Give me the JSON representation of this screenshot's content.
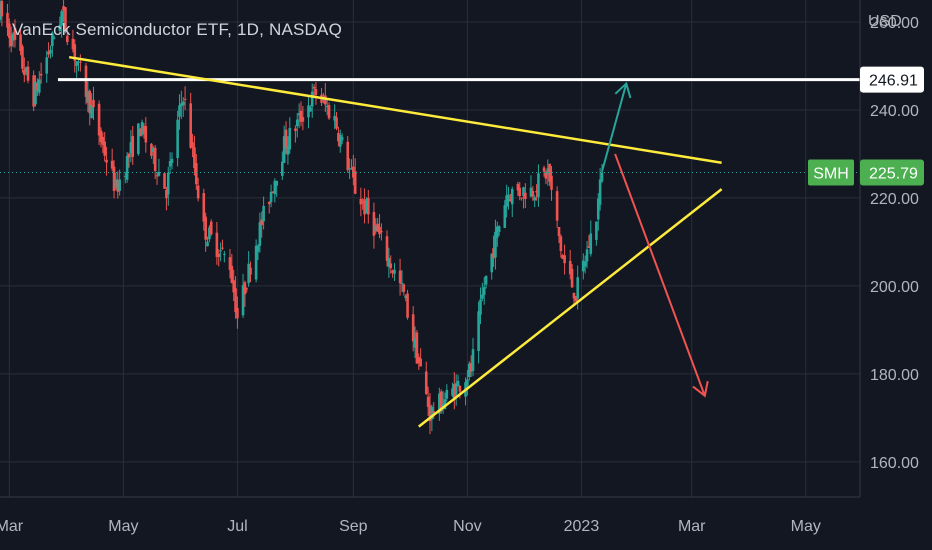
{
  "header": {
    "title": "VanEck Semiconductor ETF, 1D, NASDAQ",
    "currency": "USD"
  },
  "chart_data": {
    "type": "candlestick",
    "title": "VanEck Semiconductor ETF, 1D, NASDAQ",
    "ylabel": "USD",
    "ylim": [
      152,
      265
    ],
    "xlim": [
      "2022-02-24",
      "2023-05-30"
    ],
    "y_ticks": [
      "160.00",
      "180.00",
      "200.00",
      "220.00",
      "240.00",
      "260.00"
    ],
    "x_ticks": [
      {
        "date": "2022-03-01",
        "label": "Mar"
      },
      {
        "date": "2022-05-01",
        "label": "May"
      },
      {
        "date": "2022-07-01",
        "label": "Jul"
      },
      {
        "date": "2022-09-01",
        "label": "Sep"
      },
      {
        "date": "2022-11-01",
        "label": "Nov"
      },
      {
        "date": "2023-01-01",
        "label": "2023"
      },
      {
        "date": "2023-03-01",
        "label": "Mar"
      },
      {
        "date": "2023-05-01",
        "label": "May"
      }
    ],
    "price_path": [
      [
        "2022-02-24",
        262
      ],
      [
        "2022-03-04",
        255
      ],
      [
        "2022-03-14",
        243
      ],
      [
        "2022-03-29",
        262
      ],
      [
        "2022-04-12",
        243
      ],
      [
        "2022-04-27",
        222
      ],
      [
        "2022-05-10",
        236
      ],
      [
        "2022-05-24",
        222
      ],
      [
        "2022-06-02",
        244
      ],
      [
        "2022-06-13",
        213
      ],
      [
        "2022-06-27",
        205
      ],
      [
        "2022-07-01",
        193
      ],
      [
        "2022-07-11",
        210
      ],
      [
        "2022-07-26",
        232
      ],
      [
        "2022-08-12",
        244
      ],
      [
        "2022-08-22",
        238
      ],
      [
        "2022-09-02",
        222
      ],
      [
        "2022-09-14",
        212
      ],
      [
        "2022-09-28",
        198
      ],
      [
        "2022-10-12",
        171
      ],
      [
        "2022-10-24",
        176
      ],
      [
        "2022-11-03",
        181
      ],
      [
        "2022-11-10",
        200
      ],
      [
        "2022-11-22",
        221
      ],
      [
        "2022-12-06",
        222
      ],
      [
        "2022-12-14",
        226
      ],
      [
        "2022-12-22",
        206
      ],
      [
        "2022-12-29",
        198
      ],
      [
        "2023-01-09",
        216
      ],
      [
        "2023-01-12",
        225.79
      ]
    ],
    "levels": [
      {
        "name": "resistance",
        "value": 246.91,
        "label": "246.91",
        "color": "#ffffff"
      }
    ],
    "last_price": {
      "symbol": "SMH",
      "value": 225.79,
      "label": "225.79",
      "color": "#4caf50"
    },
    "trendlines": [
      {
        "role": "upper",
        "color": "#ffeb3b",
        "from": [
          "2022-04-02",
          252
        ],
        "to": [
          "2023-03-17",
          228
        ]
      },
      {
        "role": "lower",
        "color": "#ffeb3b",
        "from": [
          "2022-10-06",
          168
        ],
        "to": [
          "2023-03-17",
          222
        ]
      }
    ],
    "arrows": [
      {
        "direction": "up",
        "color": "#26a69a",
        "from": [
          "2023-01-12",
          226
        ],
        "to": [
          "2023-01-25",
          246
        ]
      },
      {
        "direction": "down",
        "color": "#f05350",
        "from": [
          "2023-01-19",
          230
        ],
        "to": [
          "2023-03-08",
          175
        ]
      }
    ],
    "colors": {
      "up": "#26a69a",
      "down": "#ef5350",
      "background": "#131722",
      "grid": "#2a2e39"
    }
  }
}
